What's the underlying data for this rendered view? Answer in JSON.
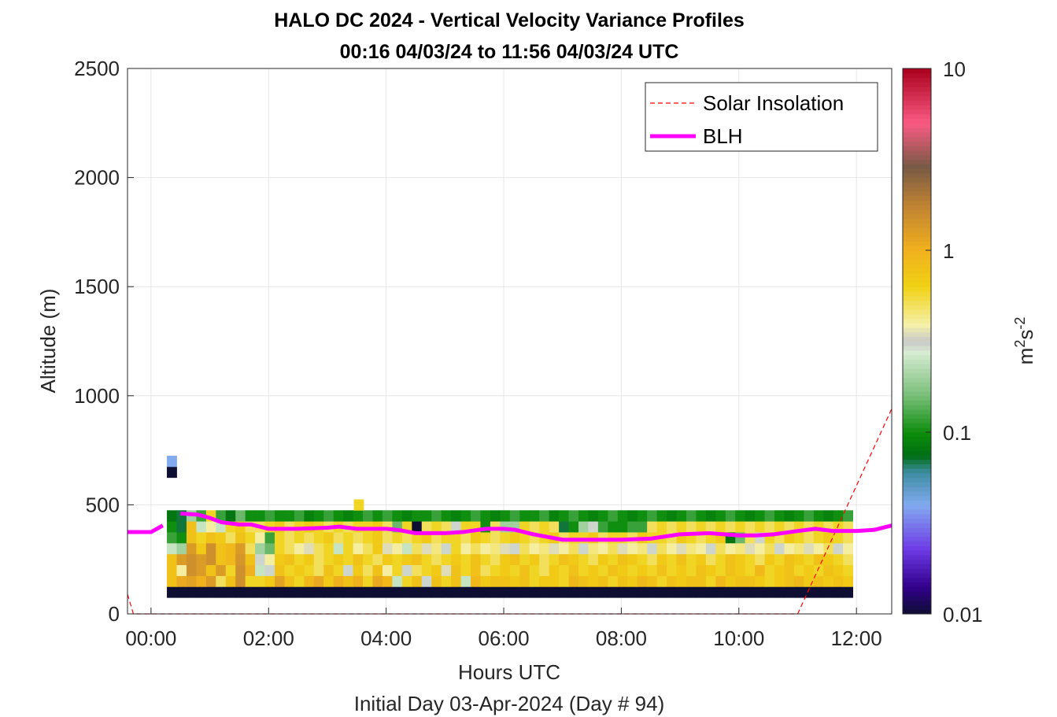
{
  "chart_data": {
    "type": "heatmap",
    "title": "HALO DC 2024 - Vertical Velocity Variance Profiles",
    "subtitle": "00:16 04/03/24 to 11:56 04/03/24  UTC",
    "xlabel": "Hours UTC",
    "xlabel2": "Initial Day 03-Apr-2024 (Day # 94)",
    "ylabel": "Altitude (m)",
    "xlim": [
      -0.4,
      12.6
    ],
    "ylim": [
      0,
      2500
    ],
    "x_ticks": [
      {
        "value": 0,
        "label": "00:00"
      },
      {
        "value": 2,
        "label": "02:00"
      },
      {
        "value": 4,
        "label": "04:00"
      },
      {
        "value": 6,
        "label": "06:00"
      },
      {
        "value": 8,
        "label": "08:00"
      },
      {
        "value": 10,
        "label": "10:00"
      },
      {
        "value": 12,
        "label": "12:00"
      }
    ],
    "y_ticks": [
      {
        "value": 0,
        "label": "0"
      },
      {
        "value": 500,
        "label": "500"
      },
      {
        "value": 1000,
        "label": "1000"
      },
      {
        "value": 1500,
        "label": "1500"
      },
      {
        "value": 2000,
        "label": "2000"
      },
      {
        "value": 2500,
        "label": "2500"
      }
    ],
    "grid": true,
    "colorbar": {
      "label": "m2s-2",
      "scale": "log",
      "range": [
        0.01,
        10
      ],
      "ticks": [
        {
          "value": 0.01,
          "label": "0.01"
        },
        {
          "value": 0.1,
          "label": "0.1"
        },
        {
          "value": 1,
          "label": "1"
        },
        {
          "value": 10,
          "label": "10"
        }
      ]
    },
    "legend": {
      "position": "top-right",
      "entries": [
        {
          "name": "Solar Insolation",
          "color": "#ff0000",
          "style": "dashed"
        },
        {
          "name": "BLH",
          "color": "#ff00ff",
          "style": "solid"
        }
      ]
    },
    "heatmap": {
      "time_start": 0.27,
      "time_step": 0.1667,
      "alt_start": 100,
      "alt_step": 50,
      "rows": [
        [
          0.01,
          0.01,
          0.01,
          0.01,
          0.01,
          0.01,
          0.01,
          0.01,
          0.01,
          0.01,
          0.01,
          0.01,
          0.01,
          0.01,
          0.01,
          0.01,
          0.01,
          0.01,
          0.01,
          0.01,
          0.01,
          0.01,
          0.01,
          0.01,
          0.01,
          0.01,
          0.01,
          0.01,
          0.01,
          0.01,
          0.01,
          0.01,
          0.01,
          0.01,
          0.01,
          0.01,
          0.01,
          0.01,
          0.01,
          0.01,
          0.01,
          0.01,
          0.01,
          0.01,
          0.01,
          0.01,
          0.01,
          0.01,
          0.01,
          0.01,
          0.01,
          0.01,
          0.01,
          0.01,
          0.01,
          0.01,
          0.01,
          0.01,
          0.01,
          0.01,
          0.01,
          0.01,
          0.01,
          0.01,
          0.01,
          0.01,
          0.01,
          0.01,
          0.01,
          0.01
        ],
        [
          0.8,
          1.1,
          1.2,
          1.0,
          1.3,
          0.5,
          0.8,
          1.5,
          0.6,
          0.6,
          0.7,
          1.2,
          0.8,
          0.6,
          0.9,
          1.1,
          0.7,
          1.0,
          0.8,
          1.0,
          0.6,
          1.1,
          0.9,
          0.25,
          0.6,
          0.8,
          0.3,
          0.8,
          0.6,
          0.8,
          0.25,
          0.9,
          0.7,
          0.8,
          0.8,
          0.7,
          0.8,
          0.6,
          0.7,
          0.7,
          0.6,
          0.9,
          0.8,
          0.7,
          0.8,
          0.6,
          0.8,
          0.7,
          0.9,
          0.8,
          0.6,
          0.8,
          0.7,
          0.8,
          0.8,
          0.6,
          0.9,
          0.7,
          0.8,
          0.8,
          0.7,
          0.6,
          0.7,
          0.8,
          0.9,
          0.7,
          0.8,
          0.7,
          0.8,
          0.7
        ],
        [
          0.8,
          0.4,
          1.5,
          1.3,
          0.8,
          1.3,
          0.6,
          1.5,
          1.0,
          0.25,
          0.3,
          0.8,
          0.6,
          0.7,
          0.6,
          0.5,
          0.8,
          0.6,
          0.3,
          0.7,
          0.5,
          0.8,
          0.4,
          0.6,
          0.3,
          0.5,
          0.6,
          0.7,
          0.35,
          0.8,
          0.6,
          0.8,
          0.5,
          0.6,
          0.7,
          0.6,
          0.8,
          0.6,
          0.5,
          0.7,
          0.6,
          0.8,
          0.6,
          0.7,
          0.6,
          0.8,
          0.7,
          0.6,
          0.7,
          0.6,
          0.8,
          0.6,
          0.7,
          0.6,
          0.8,
          0.7,
          0.6,
          0.8,
          0.7,
          0.6,
          0.9,
          0.6,
          0.7,
          0.8,
          0.6,
          0.7,
          0.6,
          0.8,
          0.7,
          0.6
        ],
        [
          0.8,
          1.3,
          1.5,
          1.3,
          1.5,
          0.8,
          0.9,
          1.4,
          0.8,
          0.3,
          0.4,
          0.7,
          0.8,
          0.6,
          0.7,
          0.5,
          0.6,
          0.7,
          0.6,
          0.8,
          0.6,
          0.5,
          0.7,
          0.6,
          0.7,
          0.8,
          0.6,
          0.5,
          0.6,
          0.7,
          0.6,
          0.8,
          0.6,
          0.5,
          0.7,
          0.8,
          0.6,
          0.7,
          0.5,
          0.6,
          0.8,
          0.7,
          0.6,
          0.5,
          0.7,
          0.6,
          0.8,
          0.7,
          0.6,
          0.5,
          0.7,
          0.6,
          0.8,
          0.6,
          0.7,
          0.5,
          0.6,
          0.8,
          0.7,
          0.6,
          0.5,
          0.7,
          0.6,
          0.8,
          0.7,
          0.6,
          0.8,
          0.7,
          0.6,
          0.5
        ],
        [
          0.25,
          0.2,
          1.3,
          0.7,
          1.5,
          0.8,
          0.9,
          1.3,
          0.5,
          0.2,
          0.15,
          0.6,
          0.5,
          0.4,
          0.35,
          0.5,
          0.6,
          0.25,
          0.6,
          0.4,
          0.5,
          0.7,
          0.35,
          0.4,
          0.25,
          0.5,
          0.35,
          0.45,
          0.3,
          0.6,
          0.4,
          0.5,
          0.4,
          0.45,
          0.35,
          0.3,
          0.5,
          0.4,
          0.45,
          0.35,
          0.4,
          0.5,
          0.3,
          0.45,
          0.4,
          0.5,
          0.35,
          0.4,
          0.45,
          0.3,
          0.5,
          0.4,
          0.35,
          0.45,
          0.4,
          0.3,
          0.5,
          0.4,
          0.45,
          0.35,
          0.4,
          0.5,
          0.3,
          0.4,
          0.45,
          0.35,
          0.4,
          0.5,
          0.3,
          0.4
        ],
        [
          0.12,
          0.1,
          0.8,
          0.6,
          0.8,
          0.7,
          0.5,
          0.8,
          0.6,
          0.4,
          0.12,
          0.6,
          0.5,
          0.6,
          0.5,
          0.6,
          0.7,
          0.5,
          0.6,
          0.5,
          0.6,
          0.7,
          0.5,
          0.6,
          0.5,
          0.6,
          0.7,
          0.5,
          0.6,
          0.6,
          0.5,
          0.7,
          0.6,
          0.5,
          0.6,
          0.7,
          0.6,
          0.5,
          0.6,
          0.7,
          0.5,
          0.6,
          0.6,
          0.7,
          0.5,
          0.6,
          0.6,
          0.5,
          0.7,
          0.6,
          0.6,
          0.5,
          0.7,
          0.6,
          0.5,
          0.6,
          0.7,
          0.08,
          0.15,
          0.5,
          0.3,
          0.6,
          0.5,
          0.7,
          0.6,
          0.5,
          0.6,
          0.7,
          0.6,
          0.5
        ],
        [
          0.1,
          0.07,
          0.8,
          0.25,
          0.4,
          0.25,
          0.6,
          0.7,
          0.5,
          0.5,
          0.6,
          0.7,
          0.5,
          0.6,
          0.7,
          0.6,
          0.5,
          0.6,
          0.5,
          0.6,
          0.6,
          0.7,
          0.5,
          0.15,
          0.6,
          0.01,
          0.5,
          0.6,
          0.5,
          0.3,
          0.6,
          0.6,
          0.1,
          0.5,
          0.2,
          0.2,
          0.6,
          0.5,
          0.6,
          0.5,
          0.07,
          0.1,
          0.2,
          0.3,
          0.12,
          0.1,
          0.1,
          0.12,
          0.12,
          0.5,
          0.6,
          0.5,
          0.6,
          0.5,
          0.6,
          0.5,
          0.6,
          0.5,
          0.6,
          0.5,
          0.6,
          0.5,
          0.6,
          0.5,
          0.6,
          0.5,
          0.6,
          0.5,
          0.6,
          0.5
        ],
        [
          0.08,
          0.07,
          0.2,
          0.12,
          0.6,
          0.12,
          0.08,
          0.15,
          0.1,
          0.1,
          0.12,
          0.1,
          0.1,
          0.12,
          0.09,
          0.1,
          0.12,
          0.1,
          0.09,
          0.1,
          0.12,
          0.1,
          0.12,
          0.1,
          0.09,
          0.1,
          0.1,
          0.12,
          0.1,
          0.09,
          0.1,
          0.12,
          0.1,
          0.09,
          0.1,
          0.12,
          0.1,
          0.1,
          0.12,
          0.09,
          0.1,
          0.12,
          0.1,
          0.09,
          0.1,
          0.12,
          0.1,
          0.09,
          0.1,
          0.12,
          0.1,
          0.09,
          0.1,
          0.12,
          0.1,
          0.09,
          0.1,
          0.12,
          0.1,
          0.09,
          0.1,
          0.12,
          0.1,
          0.09,
          0.1,
          0.12,
          0.1,
          0.09,
          0.1,
          0.12
        ]
      ],
      "extra_cells": [
        {
          "time": 0.27,
          "alt": 650,
          "value": 0.01
        },
        {
          "time": 0.27,
          "alt": 700,
          "value": 0.04
        },
        {
          "time": 3.45,
          "alt": 500,
          "value": 0.6
        }
      ]
    },
    "blh": {
      "x": [
        -0.4,
        0.0,
        0.2,
        0.27,
        0.5,
        0.8,
        1.0,
        1.2,
        1.5,
        1.7,
        2.0,
        2.5,
        3.0,
        3.2,
        3.5,
        4.0,
        4.2,
        4.5,
        5.0,
        5.3,
        5.7,
        6.0,
        6.2,
        6.5,
        7.0,
        7.5,
        8.0,
        8.5,
        9.0,
        9.5,
        10.0,
        10.3,
        10.6,
        11.0,
        11.3,
        11.6,
        12.0,
        12.3,
        12.6
      ],
      "y": [
        375,
        375,
        405,
        null,
        460,
        455,
        440,
        420,
        410,
        410,
        390,
        390,
        395,
        400,
        390,
        390,
        385,
        370,
        370,
        375,
        390,
        390,
        385,
        365,
        340,
        340,
        340,
        345,
        365,
        370,
        360,
        360,
        365,
        380,
        390,
        380,
        380,
        385,
        405
      ]
    },
    "solar_insolation": {
      "x": [
        -0.4,
        -0.3,
        11.0,
        12.6
      ],
      "y": [
        90,
        0,
        0,
        940
      ]
    }
  }
}
